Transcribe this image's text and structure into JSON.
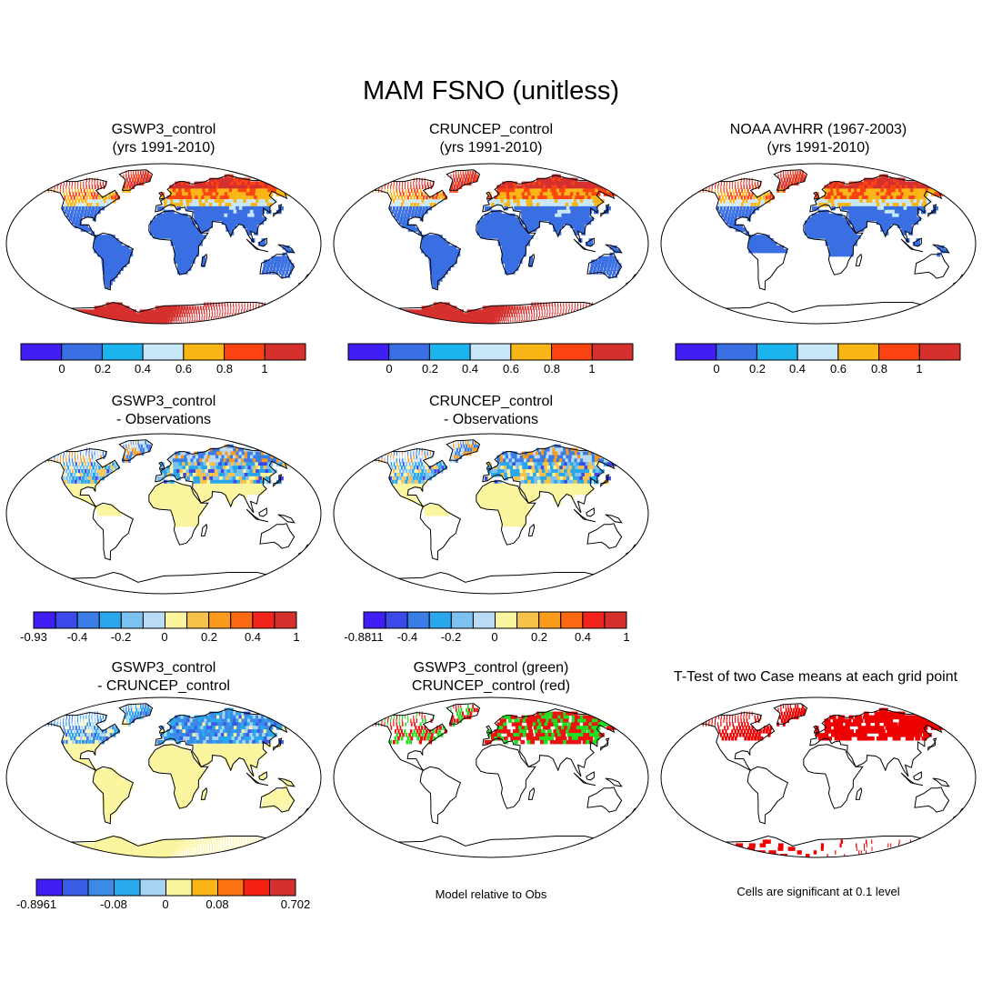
{
  "main_title": "MAM FSNO (unitless)",
  "panels": [
    {
      "title_line1": "GSWP3_control",
      "title_line2": "(yrs 1991-2010)",
      "map_mode": "fraction-model",
      "colorbar": {
        "colors": [
          "#3f1ff5",
          "#3a6fe3",
          "#1cb4ee",
          "#c8e8fa",
          "#f9b616",
          "#fc4412",
          "#d6302e"
        ],
        "ticks": [
          "0",
          "0.2",
          "0.4",
          "0.6",
          "0.8",
          "1"
        ]
      }
    },
    {
      "title_line1": "CRUNCEP_control",
      "title_line2": "(yrs 1991-2010)",
      "map_mode": "fraction-model",
      "colorbar": {
        "colors": [
          "#3f1ff5",
          "#3a6fe3",
          "#1cb4ee",
          "#c8e8fa",
          "#f9b616",
          "#fc4412",
          "#d6302e"
        ],
        "ticks": [
          "0",
          "0.2",
          "0.4",
          "0.6",
          "0.8",
          "1"
        ]
      }
    },
    {
      "title_line1": "NOAA AVHRR (1967-2003)",
      "title_line2": "(yrs 1991-2010)",
      "map_mode": "fraction-obs",
      "colorbar": {
        "colors": [
          "#3f1ff5",
          "#3a6fe3",
          "#1cb4ee",
          "#c8e8fa",
          "#f9b616",
          "#fc4412",
          "#d6302e"
        ],
        "ticks": [
          "0",
          "0.2",
          "0.4",
          "0.6",
          "0.8",
          "1"
        ]
      }
    },
    {
      "title_line1": "GSWP3_control",
      "title_line2": "- Observations",
      "map_mode": "difference-obs",
      "colorbar": {
        "colors": [
          "#3f1ff5",
          "#3a49e8",
          "#3a7de6",
          "#2aa6ec",
          "#7cc2f0",
          "#b9dcf4",
          "#fbf59f",
          "#f7c24a",
          "#f99a1c",
          "#fb6a12",
          "#f0241b",
          "#d6302e"
        ],
        "ticks": [
          "-0.93",
          "-0.4",
          "-0.2",
          "0",
          "0.2",
          "0.4",
          "1"
        ]
      }
    },
    {
      "title_line1": "CRUNCEP_control",
      "title_line2": "- Observations",
      "map_mode": "difference-obs",
      "colorbar": {
        "colors": [
          "#3f1ff5",
          "#3a49e8",
          "#3a7de6",
          "#2aa6ec",
          "#7cc2f0",
          "#b9dcf4",
          "#fbf59f",
          "#f7c24a",
          "#f99a1c",
          "#fb6a12",
          "#f0241b",
          "#d6302e"
        ],
        "ticks": [
          "-0.8811",
          "-0.4",
          "-0.2",
          "0",
          "0.2",
          "0.4",
          "1"
        ]
      }
    },
    {
      "title_line1": "GSWP3_control",
      "title_line2": "- CRUNCEP_control",
      "map_mode": "difference-case",
      "colorbar": {
        "colors": [
          "#3f1ff5",
          "#3a5de6",
          "#3a8ae6",
          "#2aa8ee",
          "#a8d4f3",
          "#fbf59f",
          "#f9b616",
          "#fb7312",
          "#f51f14",
          "#d6302e"
        ],
        "ticks": [
          "-0.8961",
          "-0.08",
          "0",
          "0.08",
          "0.702"
        ]
      }
    },
    {
      "title_line1": "GSWP3_control (green)",
      "title_line2": "CRUNCEP_control (red)",
      "map_mode": "overlay",
      "note": "Model relative to Obs"
    },
    {
      "title_line1": "T-Test of two Case means at each grid point",
      "title_line2": "",
      "map_mode": "significance",
      "note": "Cells are significant at 0.1 level"
    }
  ],
  "colors": {
    "ocean": "#ffffff",
    "land_outline": "#000000",
    "overlay_green": "#22dd22",
    "overlay_red": "#ee1111",
    "significance": "#ee0000"
  }
}
